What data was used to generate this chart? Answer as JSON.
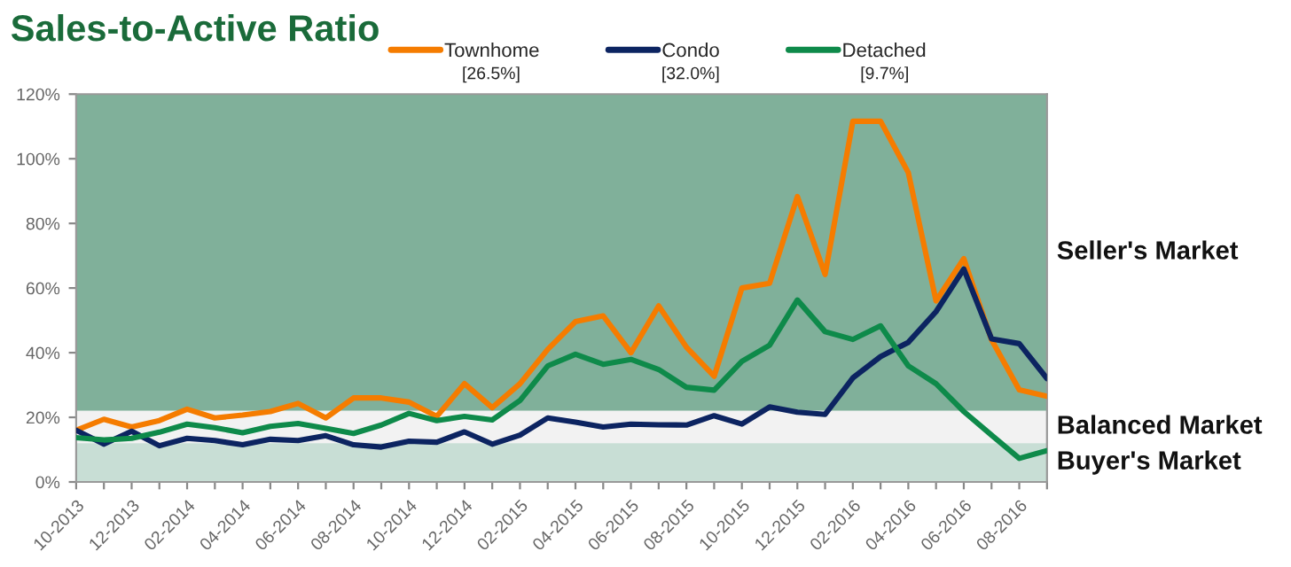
{
  "chart_data": {
    "type": "line",
    "title": "Sales-to-Active Ratio",
    "categories": [
      "10-2013",
      null,
      "12-2013",
      null,
      "02-2014",
      null,
      "04-2014",
      null,
      "06-2014",
      null,
      "08-2014",
      null,
      "10-2014",
      null,
      "12-2014",
      null,
      "02-2015",
      null,
      "04-2015",
      null,
      "06-2015",
      null,
      "08-2015",
      null,
      "10-2015",
      null,
      "12-2015",
      null,
      "02-2016",
      null,
      "04-2016",
      null,
      "06-2016",
      null,
      "08-2016",
      null
    ],
    "series": [
      {
        "name": "Townhome",
        "color": "#f57c00",
        "values": [
          16,
          19.4,
          17,
          19,
          22.5,
          19.8,
          20.7,
          21.8,
          24.3,
          19.8,
          26,
          26,
          24.7,
          20.3,
          30.4,
          23,
          30.4,
          41,
          49.6,
          51.4,
          40,
          54.5,
          41.7,
          32.7,
          60,
          61.5,
          88.3,
          64.2,
          111.6,
          111.6,
          95.7,
          56,
          69.1,
          44,
          28.5,
          26.5
        ]
      },
      {
        "name": "Condo",
        "color": "#0c2461",
        "values": [
          16,
          11.7,
          15.7,
          11.2,
          13.5,
          12.8,
          11.5,
          13.2,
          12.8,
          14.3,
          11.5,
          10.8,
          12.6,
          12.3,
          15.5,
          11.7,
          14.5,
          19.8,
          18.5,
          17,
          17.9,
          17.7,
          17.6,
          20.5,
          17.9,
          23.2,
          21.6,
          20.9,
          32.2,
          38.8,
          43.2,
          52.7,
          65.9,
          44.3,
          42.8,
          32
        ]
      },
      {
        "name": "Detached",
        "color": "#0e8a4a",
        "values": [
          13.7,
          13,
          13.5,
          15.4,
          17.9,
          16.8,
          15.2,
          17.2,
          18.1,
          16.6,
          15,
          17.6,
          21.2,
          19,
          20.3,
          19.2,
          25.2,
          35.9,
          39.5,
          36.4,
          37.9,
          34.8,
          29.3,
          28.4,
          37.3,
          42.3,
          56.3,
          46.5,
          44.1,
          48.3,
          35.9,
          30.4,
          21.8,
          14.5,
          7.3,
          9.7
        ]
      }
    ],
    "annotations": [
      "[26.5%]",
      "[32.0%]",
      "[9.7%]"
    ],
    "bands": [
      {
        "axis": "y",
        "from": 22,
        "to": 120,
        "label": "Seller's Market",
        "color": "#80b09a"
      },
      {
        "axis": "y",
        "from": 12,
        "to": 22,
        "label": "Balanced Market",
        "color": "#f2f2f2"
      },
      {
        "axis": "y",
        "from": 0,
        "to": 12,
        "label": "Buyer's Market",
        "color": "#c8ded5"
      }
    ],
    "ylim": [
      0,
      120
    ],
    "yticks": [
      {
        "value": 0,
        "label": "0%"
      },
      {
        "value": 20,
        "label": "20%"
      },
      {
        "value": 40,
        "label": "40%"
      },
      {
        "value": 60,
        "label": "60%"
      },
      {
        "value": 80,
        "label": "80%"
      },
      {
        "value": 100,
        "label": "100%"
      },
      {
        "value": 120,
        "label": "120%"
      }
    ],
    "grid": false,
    "legend": "top",
    "marker": "none",
    "line_style": "solid"
  }
}
